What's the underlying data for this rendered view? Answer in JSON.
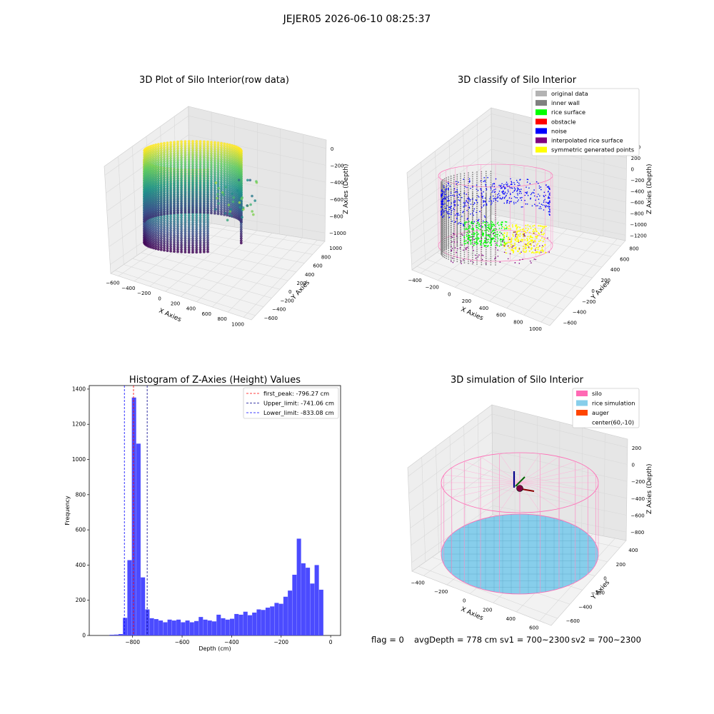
{
  "suptitle": "JEJER05 2026-06-10 08:25:37",
  "footer": {
    "flag": "flag = 0",
    "avg_depth": "avgDepth = 778 cm",
    "sv1": "sv1 = 700~2300",
    "sv2": "sv2 = 700~2300"
  },
  "chart_data": [
    {
      "type": "scatter",
      "title": "3D Plot of Silo Interior(row data)",
      "xlabel": "X Axies",
      "ylabel": "Y Axies",
      "zlabel": "Z Axies (Depth)",
      "x_ticks": [
        "−600",
        "−400",
        "−200",
        "0",
        "200",
        "400",
        "600",
        "800",
        "1000"
      ],
      "y_ticks": [
        "−600",
        "−400",
        "−200",
        "0",
        "200",
        "400",
        "600",
        "800",
        "1000"
      ],
      "z_ticks": [
        "−1000",
        "−800",
        "−600",
        "−400",
        "−200",
        "0"
      ],
      "colormap": "viridis"
    },
    {
      "type": "scatter",
      "title": "3D classify of Silo Interior",
      "xlabel": "X Axies",
      "ylabel": "Y Axies",
      "zlabel": "Z Axies (Depth)",
      "x_ticks": [
        "−400",
        "−200",
        "0",
        "200",
        "400",
        "600",
        "800",
        "1000"
      ],
      "y_ticks": [
        "−600",
        "−400",
        "−200",
        "0",
        "200",
        "400",
        "600",
        "800"
      ],
      "z_ticks": [
        "−1200",
        "−1000",
        "−800",
        "−600",
        "−400",
        "−200",
        "0",
        "200",
        "400"
      ],
      "legend_position": "top-right",
      "legend": [
        {
          "label": "original data",
          "color": "#b3b3b3"
        },
        {
          "label": "inner wall",
          "color": "#808080"
        },
        {
          "label": "rice surface",
          "color": "#00ff00"
        },
        {
          "label": "obstacle",
          "color": "#ff0000"
        },
        {
          "label": "noise",
          "color": "#0000ff"
        },
        {
          "label": "interpolated rice surface",
          "color": "#800080"
        },
        {
          "label": "symmetric generated points",
          "color": "#ffff00"
        }
      ]
    },
    {
      "type": "bar",
      "title": "Histogram of Z-Axies (Height) Values",
      "xlabel": "Depth (cm)",
      "ylabel": "Frequency",
      "xlim": [
        -975,
        40
      ],
      "ylim": [
        0,
        1420
      ],
      "x_ticks": [
        -800,
        -600,
        -400,
        -200,
        0
      ],
      "y_ticks": [
        0,
        200,
        400,
        600,
        800,
        1000,
        1200,
        1400
      ],
      "bar_color": "#4b4bff",
      "bin_width": 18,
      "bins": [
        {
          "x0": -893,
          "v": 4
        },
        {
          "x0": -875,
          "v": 5
        },
        {
          "x0": -857,
          "v": 8
        },
        {
          "x0": -839,
          "v": 100
        },
        {
          "x0": -821,
          "v": 428
        },
        {
          "x0": -803,
          "v": 1352
        },
        {
          "x0": -785,
          "v": 1090
        },
        {
          "x0": -767,
          "v": 330
        },
        {
          "x0": -749,
          "v": 148
        },
        {
          "x0": -731,
          "v": 98
        },
        {
          "x0": -713,
          "v": 93
        },
        {
          "x0": -695,
          "v": 85
        },
        {
          "x0": -677,
          "v": 75
        },
        {
          "x0": -659,
          "v": 90
        },
        {
          "x0": -641,
          "v": 85
        },
        {
          "x0": -623,
          "v": 90
        },
        {
          "x0": -605,
          "v": 75
        },
        {
          "x0": -587,
          "v": 85
        },
        {
          "x0": -569,
          "v": 75
        },
        {
          "x0": -551,
          "v": 82
        },
        {
          "x0": -533,
          "v": 105
        },
        {
          "x0": -515,
          "v": 90
        },
        {
          "x0": -497,
          "v": 85
        },
        {
          "x0": -479,
          "v": 80
        },
        {
          "x0": -461,
          "v": 118
        },
        {
          "x0": -443,
          "v": 98
        },
        {
          "x0": -425,
          "v": 90
        },
        {
          "x0": -407,
          "v": 95
        },
        {
          "x0": -389,
          "v": 122
        },
        {
          "x0": -371,
          "v": 118
        },
        {
          "x0": -353,
          "v": 135
        },
        {
          "x0": -335,
          "v": 115
        },
        {
          "x0": -317,
          "v": 130
        },
        {
          "x0": -299,
          "v": 148
        },
        {
          "x0": -281,
          "v": 145
        },
        {
          "x0": -263,
          "v": 158
        },
        {
          "x0": -245,
          "v": 165
        },
        {
          "x0": -227,
          "v": 185
        },
        {
          "x0": -209,
          "v": 180
        },
        {
          "x0": -191,
          "v": 220
        },
        {
          "x0": -173,
          "v": 255
        },
        {
          "x0": -155,
          "v": 345
        },
        {
          "x0": -137,
          "v": 550
        },
        {
          "x0": -119,
          "v": 410
        },
        {
          "x0": -101,
          "v": 385
        },
        {
          "x0": -83,
          "v": 295
        },
        {
          "x0": -65,
          "v": 400
        },
        {
          "x0": -47,
          "v": 260
        }
      ],
      "vlines": [
        {
          "label": "first_peak: -796.27 cm",
          "x": -796.27,
          "color": "#ff0000"
        },
        {
          "label": "Upper_limit: -741.06 cm",
          "x": -741.06,
          "color": "#00008b"
        },
        {
          "label": "Lower_limit: -833.08 cm",
          "x": -833.08,
          "color": "#0000ff"
        }
      ],
      "legend_position": "top-right"
    },
    {
      "type": "scatter",
      "title": "3D simulation of Silo Interior",
      "xlabel": "X Axies",
      "ylabel": "Y Axies",
      "zlabel": "Z Axies (Depth)",
      "x_ticks": [
        "−400",
        "−200",
        "0",
        "200",
        "400",
        "600"
      ],
      "y_ticks": [
        "−600",
        "−400",
        "−200",
        "0",
        "200",
        "400"
      ],
      "z_ticks": [
        "−800",
        "−600",
        "−400",
        "−200",
        "0",
        "200"
      ],
      "legend_position": "top-right",
      "legend": [
        {
          "label": "silo",
          "color": "#ff69b4"
        },
        {
          "label": "rice simulation",
          "color": "#87ceeb"
        },
        {
          "label": "auger",
          "color": "#ff4500"
        },
        {
          "label": "center(60,-10)",
          "color": ""
        }
      ]
    }
  ]
}
